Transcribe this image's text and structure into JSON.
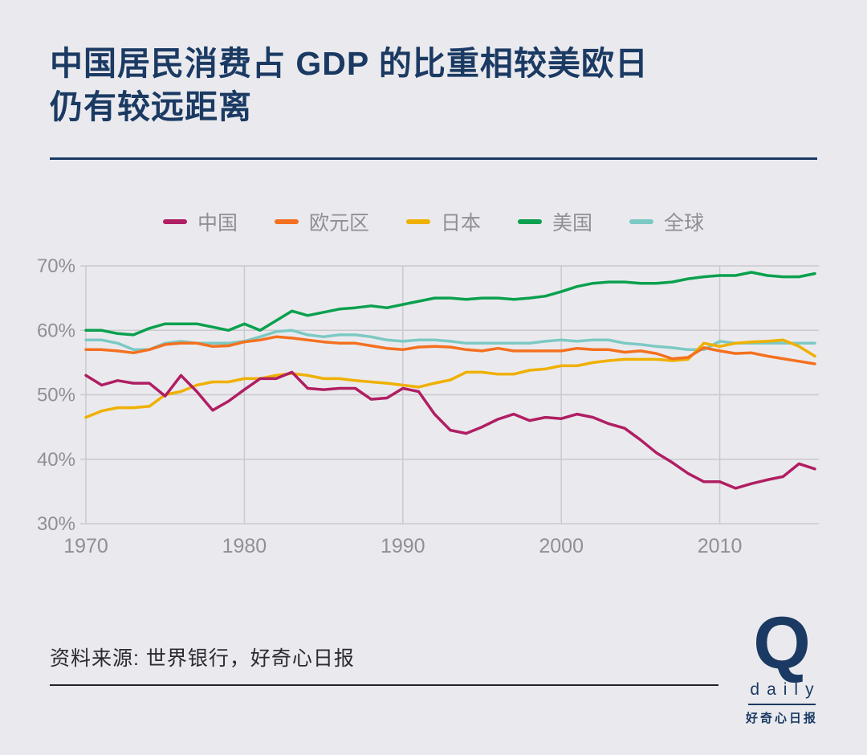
{
  "page": {
    "title_line1": "中国居民消费占 GDP 的比重相较美欧日",
    "title_line2": "仍有较远距离",
    "source": "资料来源: 世界银行，好奇心日报",
    "logo": {
      "q": "Q",
      "daily": "daily",
      "name": "好奇心日报"
    }
  },
  "colors": {
    "background": "#eaeaee",
    "title": "#1b3a63",
    "grid": "#c9c9ce",
    "axis_label": "#8f8f95"
  },
  "chart_data": {
    "type": "line",
    "title": "中国居民消费占 GDP 的比重相较美欧日仍有较远距离",
    "xlabel": "",
    "ylabel": "",
    "ylim": [
      30,
      70
    ],
    "y_ticks": [
      30,
      40,
      50,
      60,
      70
    ],
    "y_suffix": "%",
    "x_ticks": [
      1970,
      1980,
      1990,
      2000,
      2010
    ],
    "grid": true,
    "legend_position": "top",
    "x": [
      1970,
      1971,
      1972,
      1973,
      1974,
      1975,
      1976,
      1977,
      1978,
      1979,
      1980,
      1981,
      1982,
      1983,
      1984,
      1985,
      1986,
      1987,
      1988,
      1989,
      1990,
      1991,
      1992,
      1993,
      1994,
      1995,
      1996,
      1997,
      1998,
      1999,
      2000,
      2001,
      2002,
      2003,
      2004,
      2005,
      2006,
      2007,
      2008,
      2009,
      2010,
      2011,
      2012,
      2013,
      2014,
      2015,
      2016
    ],
    "series": [
      {
        "name": "中国",
        "color": "#b01e63",
        "values": [
          53.0,
          51.5,
          52.2,
          51.8,
          51.8,
          49.8,
          53.0,
          50.5,
          47.6,
          49.0,
          50.8,
          52.5,
          52.5,
          53.5,
          51.0,
          50.8,
          51.0,
          51.0,
          49.3,
          49.5,
          51.0,
          50.5,
          47.0,
          44.5,
          44.0,
          45.0,
          46.2,
          47.0,
          46.0,
          46.5,
          46.3,
          47.0,
          46.5,
          45.5,
          44.8,
          43.0,
          41.0,
          39.5,
          37.8,
          36.5,
          36.5,
          35.5,
          36.2,
          36.8,
          37.3,
          39.3,
          38.5
        ]
      },
      {
        "name": "欧元区",
        "color": "#f4701f",
        "values": [
          57.0,
          57.0,
          56.8,
          56.5,
          57.0,
          57.8,
          58.0,
          58.0,
          57.5,
          57.6,
          58.2,
          58.5,
          59.0,
          58.8,
          58.5,
          58.2,
          58.0,
          58.0,
          57.6,
          57.2,
          57.0,
          57.4,
          57.5,
          57.4,
          57.0,
          56.8,
          57.2,
          56.8,
          56.8,
          56.8,
          56.8,
          57.2,
          57.0,
          57.0,
          56.6,
          56.8,
          56.4,
          55.6,
          55.8,
          57.3,
          56.8,
          56.4,
          56.5,
          56.0,
          55.6,
          55.2,
          54.8
        ]
      },
      {
        "name": "日本",
        "color": "#efb000",
        "values": [
          46.5,
          47.5,
          48.0,
          48.0,
          48.2,
          50.0,
          50.5,
          51.5,
          52.0,
          52.0,
          52.5,
          52.5,
          53.0,
          53.3,
          53.0,
          52.5,
          52.5,
          52.2,
          52.0,
          51.8,
          51.5,
          51.2,
          51.8,
          52.3,
          53.5,
          53.5,
          53.2,
          53.2,
          53.8,
          54.0,
          54.5,
          54.5,
          55.0,
          55.3,
          55.5,
          55.5,
          55.5,
          55.3,
          55.5,
          58.0,
          57.5,
          58.0,
          58.2,
          58.3,
          58.5,
          57.5,
          56.0
        ]
      },
      {
        "name": "美国",
        "color": "#0aa04e",
        "values": [
          60.0,
          60.0,
          59.5,
          59.3,
          60.3,
          61.0,
          61.0,
          61.0,
          60.5,
          60.0,
          61.0,
          60.0,
          61.5,
          63.0,
          62.3,
          62.8,
          63.3,
          63.5,
          63.8,
          63.5,
          64.0,
          64.5,
          65.0,
          65.0,
          64.8,
          65.0,
          65.0,
          64.8,
          65.0,
          65.3,
          66.0,
          66.8,
          67.3,
          67.5,
          67.5,
          67.3,
          67.3,
          67.5,
          68.0,
          68.3,
          68.5,
          68.5,
          69.0,
          68.5,
          68.3,
          68.3,
          68.8
        ]
      },
      {
        "name": "全球",
        "color": "#7cc9c4",
        "values": [
          58.5,
          58.5,
          58.0,
          57.0,
          57.0,
          58.0,
          58.3,
          58.0,
          58.0,
          58.0,
          58.3,
          59.0,
          59.8,
          60.0,
          59.3,
          59.0,
          59.3,
          59.3,
          59.0,
          58.5,
          58.3,
          58.5,
          58.5,
          58.3,
          58.0,
          58.0,
          58.0,
          58.0,
          58.0,
          58.3,
          58.5,
          58.3,
          58.5,
          58.5,
          58.0,
          57.8,
          57.5,
          57.3,
          57.0,
          57.0,
          58.3,
          58.0,
          58.0,
          58.0,
          58.0,
          58.0,
          58.0
        ]
      }
    ]
  }
}
